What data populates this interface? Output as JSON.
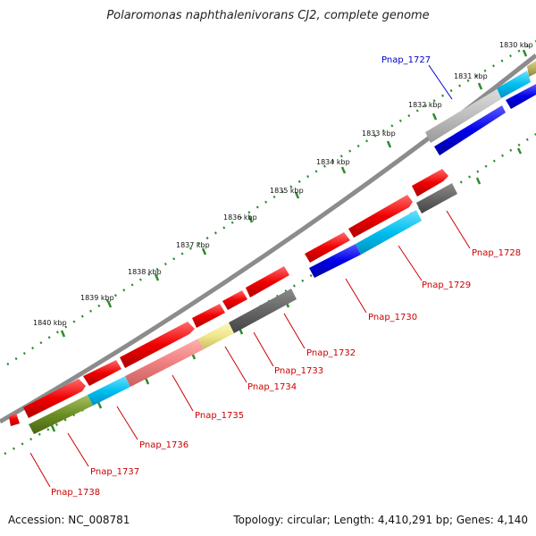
{
  "title": "Polaromonas naphthalenivorans CJ2, complete genome",
  "accession": "Accession: NC_008781",
  "topology": "Topology: circular; Length: 4,410,291 bp; Genes: 4,140",
  "colors": {
    "backbone": "#8c8c8c",
    "tick": "#2e8b2e",
    "forward_label": "#0000cc",
    "reverse_label": "#cc0000"
  },
  "scale_labels": [
    "1830 kbp",
    "1831 kbp",
    "1832 kbp",
    "1833 kbp",
    "1834 kbp",
    "1835 kbp",
    "1836 kbp",
    "1837 kbp",
    "1838 kbp",
    "1839 kbp",
    "1840 kbp"
  ],
  "gene_labels": [
    "Pnap_1727",
    "Pnap_1728",
    "Pnap_1729",
    "Pnap_1730",
    "Pnap_1732",
    "Pnap_1733",
    "Pnap_1734",
    "Pnap_1735",
    "Pnap_1736",
    "Pnap_1737",
    "Pnap_1738"
  ]
}
